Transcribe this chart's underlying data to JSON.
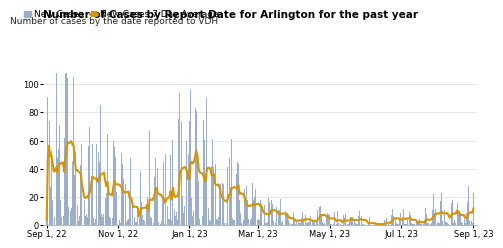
{
  "title": "Number of Cases by Report Date for Arlington for the past year",
  "subtitle": "Number of cases by the date reported to VDH",
  "legend_bar": "New Cases",
  "legend_line": "New Cases 7 Day Average",
  "bar_color": "#9daec8",
  "line_color": "#d4940a",
  "background_color": "#ffffff",
  "ylim": [
    0,
    110
  ],
  "yticks": [
    0,
    20,
    40,
    60,
    80,
    100
  ],
  "xtick_labels": [
    "Sep 1, 22",
    "Nov 1, 22",
    "Jan 1, 23",
    "Mar 1, 23",
    "May 1, 23",
    "Jul 1, 23",
    "Sep 1, 23"
  ],
  "xtick_positions": [
    0,
    61,
    122,
    181,
    242,
    303,
    365
  ],
  "title_fontsize": 7.5,
  "subtitle_fontsize": 6.5,
  "legend_fontsize": 6.5,
  "tick_fontsize": 6,
  "n_days": 366
}
